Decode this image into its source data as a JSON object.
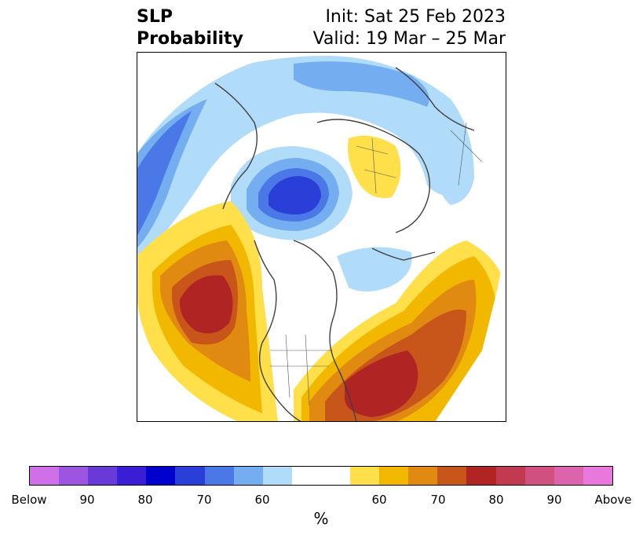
{
  "title": {
    "left_line1": "SLP",
    "left_line2": "Probability",
    "right_line1": "Init: Sat 25 Feb 2023",
    "right_line2": "Valid: 19 Mar – 25 Mar"
  },
  "colorbar": {
    "colors": [
      "#d070e8",
      "#9b55e0",
      "#6a3ad8",
      "#3a1ed6",
      "#0000cc",
      "#2a3ed8",
      "#4a78e6",
      "#74aef0",
      "#b0dcfa",
      "#ffffff",
      "#ffffff",
      "#ffe04a",
      "#f2b800",
      "#e08a12",
      "#c8551a",
      "#b02424",
      "#c23a50",
      "#d05080",
      "#dc64ac",
      "#e878dc"
    ],
    "tick_labels": [
      "Below",
      "90",
      "80",
      "70",
      "60",
      "60",
      "70",
      "80",
      "90",
      "Above"
    ],
    "unit": "%"
  },
  "legend_colors": {
    "below_strong": "#2a3ed8",
    "below_mid": "#4a78e6",
    "below_light": "#74aef0",
    "below_faint": "#b0dcfa",
    "above_faint": "#ffe04a",
    "above_light": "#f2b800",
    "above_mid": "#e08a12",
    "above_strong": "#c8551a",
    "above_max": "#b02424"
  }
}
